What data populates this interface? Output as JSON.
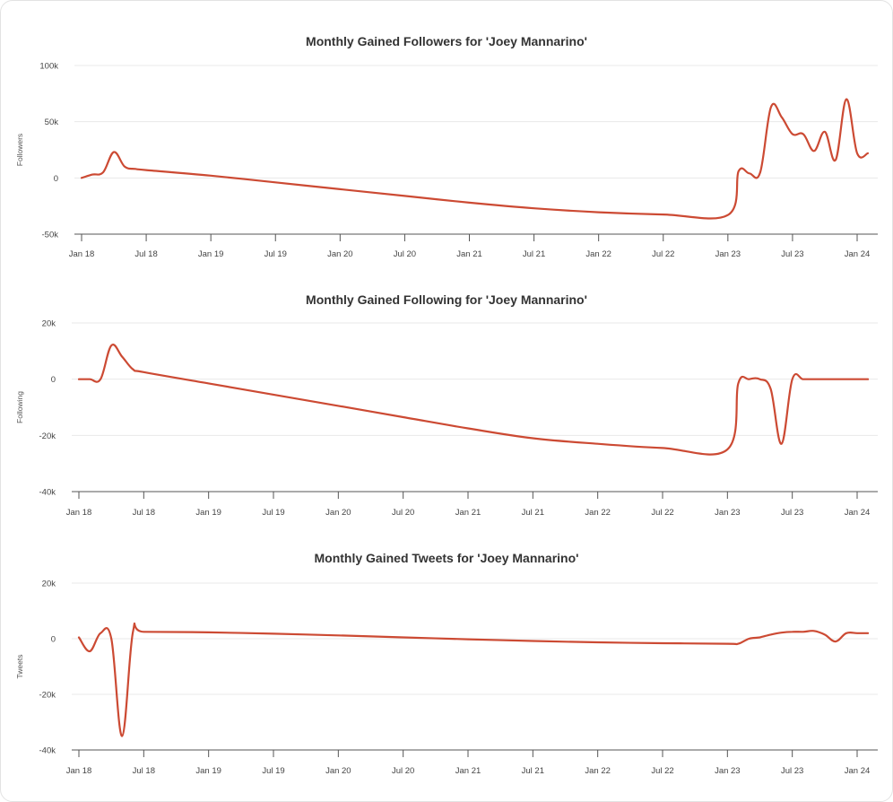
{
  "colors": {
    "series": "#cc4a33",
    "grid": "#e8e8e8",
    "axis": "#555555",
    "text": "#333333"
  },
  "chart_data": [
    {
      "type": "line",
      "title": "Monthly Gained Followers for 'Joey Mannarino'",
      "xlabel": "",
      "ylabel": "Followers",
      "ylim": [
        -50000,
        100000
      ],
      "y_ticks": [
        -50000,
        0,
        50000,
        100000
      ],
      "y_tick_labels": [
        "-50k",
        "0",
        "50k",
        "100k"
      ],
      "x_ticks": [
        "2018-01",
        "2018-07",
        "2019-01",
        "2019-07",
        "2020-01",
        "2020-07",
        "2021-01",
        "2021-07",
        "2022-01",
        "2022-07",
        "2023-01",
        "2023-07",
        "2024-01"
      ],
      "x_tick_labels": [
        "Jan 18",
        "Jul 18",
        "Jan 19",
        "Jul 19",
        "Jan 20",
        "Jul 20",
        "Jan 21",
        "Jul 21",
        "Jan 22",
        "Jul 22",
        "Jan 23",
        "Jul 23",
        "Jan 24"
      ],
      "grid": true,
      "series": [
        {
          "x": [
            "2018-01",
            "2018-02",
            "2018-03",
            "2018-04",
            "2018-05",
            "2018-06",
            "2018-07",
            "2019-01",
            "2019-07",
            "2020-01",
            "2020-07",
            "2021-01",
            "2021-07",
            "2022-01",
            "2022-07",
            "2023-01",
            "2023-02",
            "2023-03",
            "2023-04",
            "2023-05",
            "2023-06",
            "2023-07",
            "2023-08",
            "2023-09",
            "2023-10",
            "2023-11",
            "2023-12",
            "2024-01",
            "2024-02"
          ],
          "values": [
            0,
            3000,
            5000,
            23000,
            10000,
            8000,
            7000,
            2000,
            -4000,
            -10000,
            -16000,
            -22000,
            -27000,
            -30500,
            -32500,
            -33000,
            6000,
            4000,
            5000,
            63000,
            54000,
            39000,
            39000,
            24000,
            41000,
            16000,
            70000,
            22000,
            22000
          ]
        }
      ]
    },
    {
      "type": "line",
      "title": "Monthly Gained Following for 'Joey Mannarino'",
      "xlabel": "",
      "ylabel": "Following",
      "ylim": [
        -40000,
        20000
      ],
      "y_ticks": [
        -40000,
        -20000,
        0,
        20000
      ],
      "y_tick_labels": [
        "-40k",
        "-20k",
        "0",
        "20k"
      ],
      "x_ticks": [
        "2018-01",
        "2018-07",
        "2019-01",
        "2019-07",
        "2020-01",
        "2020-07",
        "2021-01",
        "2021-07",
        "2022-01",
        "2022-07",
        "2023-01",
        "2023-07",
        "2024-01"
      ],
      "x_tick_labels": [
        "Jan 18",
        "Jul 18",
        "Jan 19",
        "Jul 19",
        "Jan 20",
        "Jul 20",
        "Jan 21",
        "Jul 21",
        "Jan 22",
        "Jul 22",
        "Jan 23",
        "Jul 23",
        "Jan 24"
      ],
      "grid": true,
      "series": [
        {
          "x": [
            "2018-01",
            "2018-02",
            "2018-03",
            "2018-04",
            "2018-05",
            "2018-06",
            "2018-07",
            "2019-01",
            "2019-07",
            "2020-01",
            "2020-07",
            "2021-01",
            "2021-07",
            "2022-01",
            "2022-07",
            "2023-01",
            "2023-02",
            "2023-03",
            "2023-04",
            "2023-05",
            "2023-06",
            "2023-07",
            "2023-08",
            "2023-09",
            "2023-10",
            "2023-11",
            "2023-12",
            "2024-01",
            "2024-02"
          ],
          "values": [
            0,
            0,
            0,
            12000,
            8000,
            3500,
            2500,
            -1500,
            -5500,
            -9500,
            -13500,
            -17500,
            -21000,
            -23000,
            -24500,
            -25000,
            -1500,
            0,
            0,
            -3500,
            -23000,
            0,
            0,
            0,
            0,
            0,
            0,
            0,
            0
          ]
        }
      ]
    },
    {
      "type": "line",
      "title": "Monthly Gained Tweets for 'Joey Mannarino'",
      "xlabel": "",
      "ylabel": "Tweets",
      "ylim": [
        -40000,
        20000
      ],
      "y_ticks": [
        -40000,
        -20000,
        0,
        20000
      ],
      "y_tick_labels": [
        "-40k",
        "-20k",
        "0",
        "20k"
      ],
      "x_ticks": [
        "2018-01",
        "2018-07",
        "2019-01",
        "2019-07",
        "2020-01",
        "2020-07",
        "2021-01",
        "2021-07",
        "2022-01",
        "2022-07",
        "2023-01",
        "2023-07",
        "2024-01"
      ],
      "x_tick_labels": [
        "Jan 18",
        "Jul 18",
        "Jan 19",
        "Jul 19",
        "Jan 20",
        "Jul 20",
        "Jan 21",
        "Jul 21",
        "Jan 22",
        "Jul 22",
        "Jan 23",
        "Jul 23",
        "Jan 24"
      ],
      "grid": true,
      "series": [
        {
          "x": [
            "2018-01",
            "2018-02",
            "2018-03",
            "2018-04",
            "2018-05",
            "2018-06",
            "2018-07",
            "2019-01",
            "2019-07",
            "2020-01",
            "2020-07",
            "2021-01",
            "2021-07",
            "2022-01",
            "2022-07",
            "2023-01",
            "2023-02",
            "2023-03",
            "2023-04",
            "2023-05",
            "2023-06",
            "2023-07",
            "2023-08",
            "2023-09",
            "2023-10",
            "2023-11",
            "2023-12",
            "2024-01",
            "2024-02"
          ],
          "values": [
            500,
            -4500,
            2000,
            0,
            -35000,
            2500,
            2500,
            2300,
            1800,
            1200,
            500,
            -200,
            -800,
            -1300,
            -1600,
            -1800,
            -1800,
            0,
            500,
            1500,
            2200,
            2500,
            2500,
            2800,
            1500,
            -1000,
            2000,
            2000,
            2000
          ]
        }
      ]
    }
  ]
}
